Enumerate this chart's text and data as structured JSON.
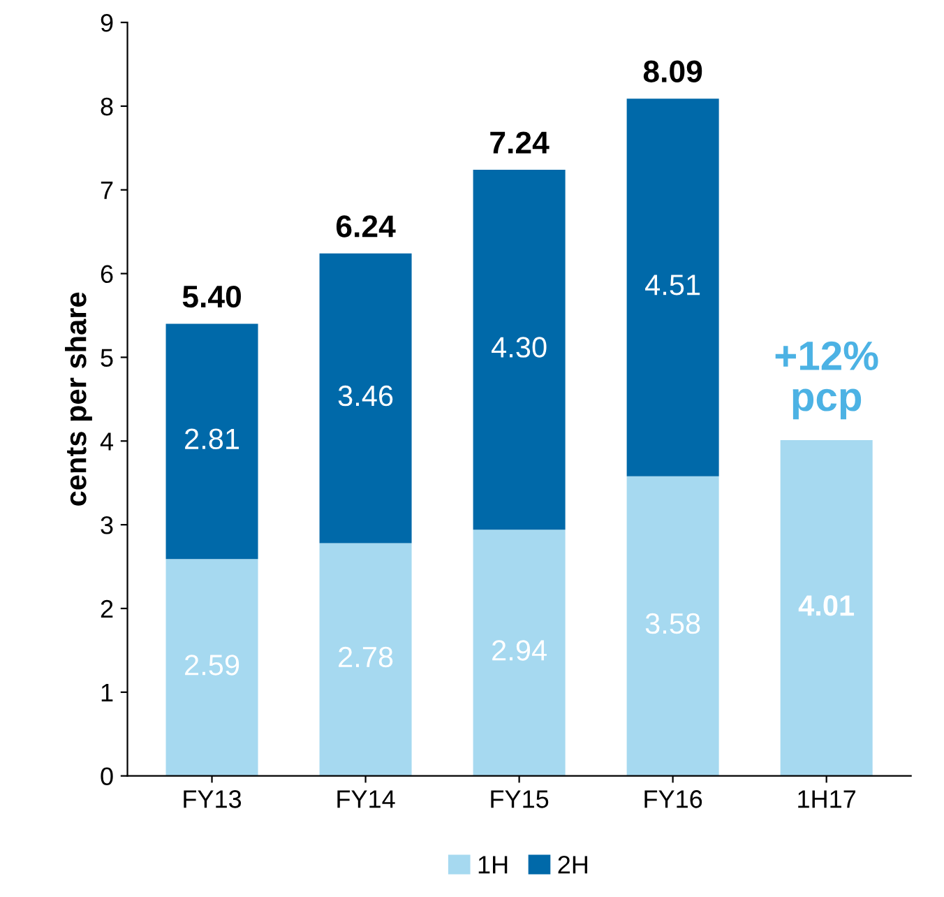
{
  "chart_data": {
    "type": "bar",
    "stacked": true,
    "ylabel": "cents per share",
    "categories": [
      "FY13",
      "FY14",
      "FY15",
      "FY16",
      "1H17"
    ],
    "series": [
      {
        "name": "1H",
        "color": "#a6d9f0",
        "values": [
          2.59,
          2.78,
          2.94,
          3.58,
          4.01
        ],
        "value_labels": [
          "2.59",
          "2.78",
          "2.94",
          "3.58",
          "4.01"
        ]
      },
      {
        "name": "2H",
        "color": "#0069a9",
        "values": [
          2.81,
          3.46,
          4.3,
          4.51,
          null
        ],
        "value_labels": [
          "2.81",
          "3.46",
          "4.30",
          "4.51",
          null
        ]
      }
    ],
    "totals": [
      "5.40",
      "6.24",
      "7.24",
      "8.09",
      null
    ],
    "annotations": [
      "+12%\npcp"
    ],
    "ylim": [
      0,
      9
    ],
    "yticks": [
      0,
      1,
      2,
      3,
      4,
      5,
      6,
      7,
      8,
      9
    ],
    "grid": false,
    "legend": "bottom"
  }
}
